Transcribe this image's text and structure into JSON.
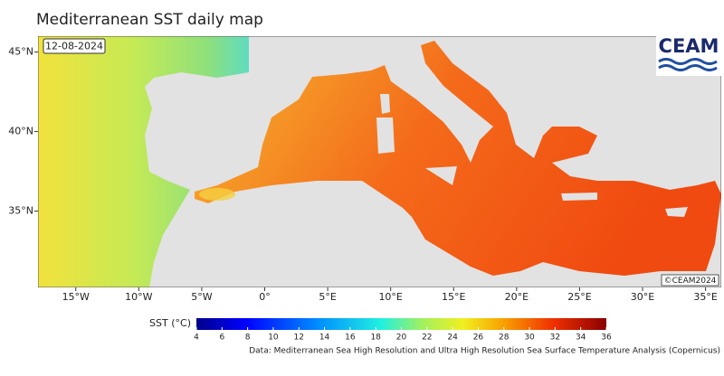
{
  "map": {
    "title": "Mediterranean SST daily map",
    "date": "12-08-2024",
    "logo": "CEAM",
    "watermark": "©CEAM2024",
    "xlim": [
      -18,
      36.25
    ],
    "ylim": [
      30.2,
      46
    ],
    "lon_ticks": [
      {
        "value": -15,
        "label": "15°W"
      },
      {
        "value": -10,
        "label": "10°W"
      },
      {
        "value": -5,
        "label": "5°W"
      },
      {
        "value": 0,
        "label": "0°"
      },
      {
        "value": 5,
        "label": "5°E"
      },
      {
        "value": 10,
        "label": "10°E"
      },
      {
        "value": 15,
        "label": "15°E"
      },
      {
        "value": 20,
        "label": "20°E"
      },
      {
        "value": 25,
        "label": "25°E"
      },
      {
        "value": 30,
        "label": "30°E"
      },
      {
        "value": 35,
        "label": "35°E"
      }
    ],
    "lat_ticks": [
      {
        "value": 35,
        "label": "35°N"
      },
      {
        "value": 40,
        "label": "40°N"
      },
      {
        "value": 45,
        "label": "45°N"
      }
    ]
  },
  "colorbar": {
    "label": "SST (°C)",
    "range": [
      4,
      36
    ],
    "ticks": [
      4,
      6,
      8,
      10,
      12,
      14,
      16,
      18,
      20,
      22,
      24,
      26,
      28,
      30,
      32,
      34,
      36
    ]
  },
  "source": "Data: Mediterranean Sea High Resolution and Ultra High Resolution Sea Surface Temperature Analysis (Copernicus)"
}
